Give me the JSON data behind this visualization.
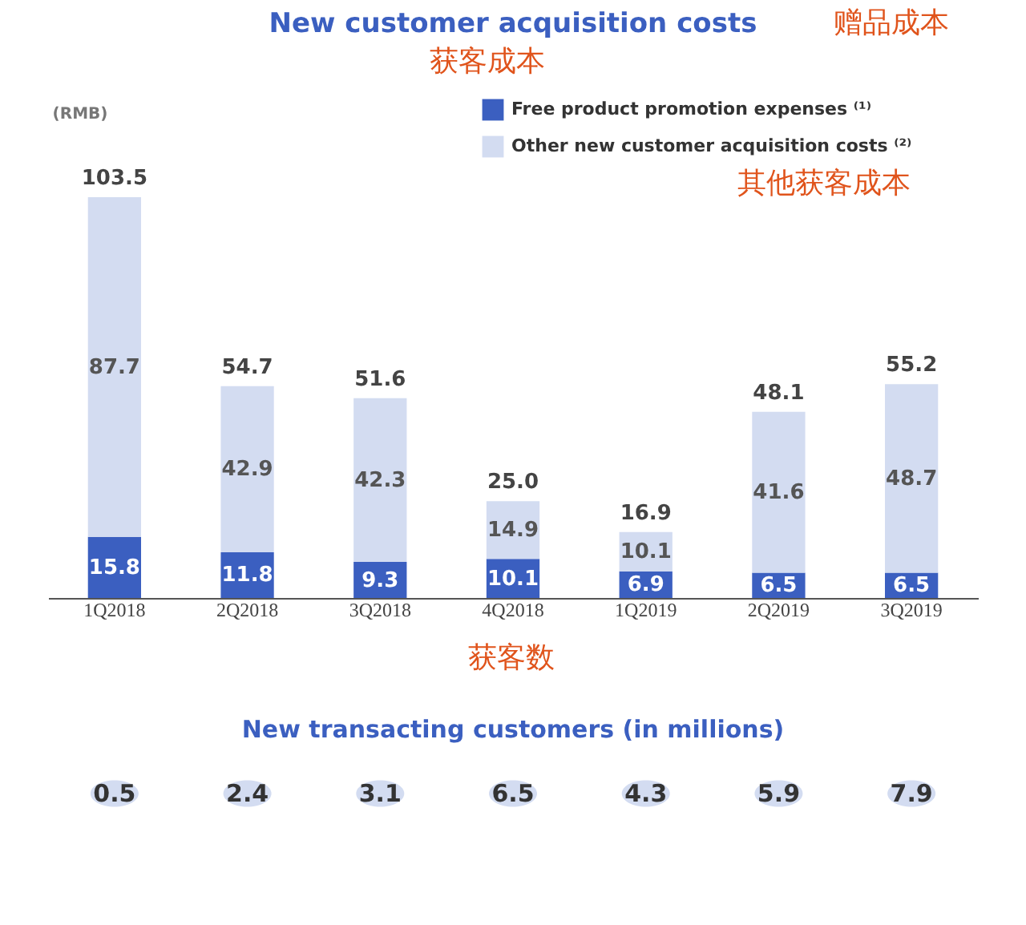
{
  "chart_data": [
    {
      "type": "bar",
      "title": "New customer acquisition costs",
      "ylabel": "(RMB)",
      "categories": [
        "1Q2018",
        "2Q2018",
        "3Q2018",
        "4Q2018",
        "1Q2019",
        "2Q2019",
        "3Q2019"
      ],
      "stacked": true,
      "series": [
        {
          "name": "Free product promotion expenses ⁽¹⁾",
          "color": "#3b5fc0",
          "values": [
            15.8,
            11.8,
            9.3,
            10.1,
            6.9,
            6.5,
            6.5
          ]
        },
        {
          "name": "Other new customer acquisition costs ⁽²⁾",
          "color": "#d3dcf1",
          "values": [
            87.7,
            42.9,
            42.3,
            14.9,
            10.1,
            41.6,
            48.7
          ]
        }
      ],
      "totals": [
        "103.5",
        "54.7",
        "51.6",
        "25.0",
        "16.9",
        "48.1",
        "55.2"
      ],
      "data_labels": true,
      "legend": "top right",
      "annotations": [
        "获客成本",
        "赠品成本",
        "其他获客成本"
      ]
    },
    {
      "type": "other",
      "title": "New transacting customers (in millions)",
      "categories": [
        null,
        null,
        null,
        null,
        null,
        null,
        null
      ],
      "values": [
        0.5,
        2.4,
        3.1,
        6.5,
        4.3,
        5.9,
        7.9
      ],
      "color": "#d3dcf1",
      "data_labels": true,
      "annotations": [
        "获客数"
      ]
    }
  ]
}
